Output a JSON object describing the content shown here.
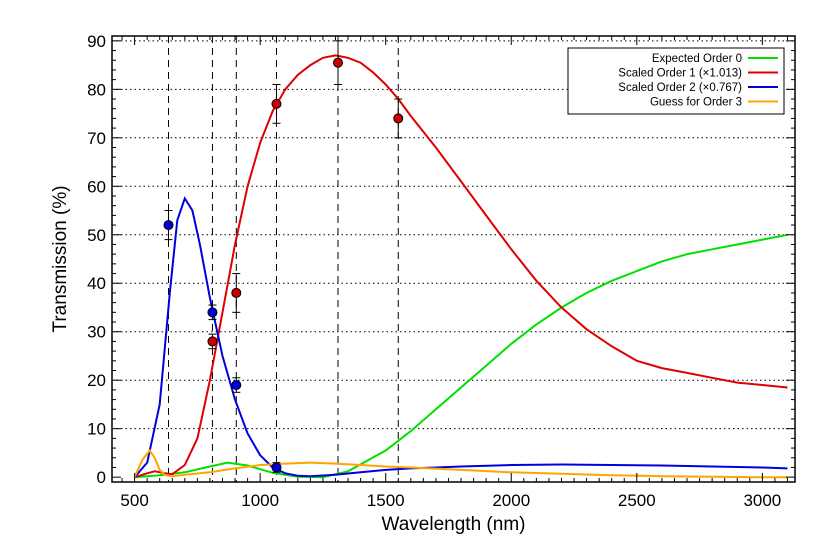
{
  "chart_data": {
    "type": "line",
    "title": "",
    "xlabel": "Wavelength (nm)",
    "ylabel": "Transmission (%)",
    "xlim": [
      410,
      3130
    ],
    "ylim": [
      -1,
      91
    ],
    "x_ticks": [
      500,
      1000,
      1500,
      2000,
      2500,
      3000
    ],
    "y_ticks": [
      0,
      10,
      20,
      30,
      40,
      50,
      60,
      70,
      80,
      90
    ],
    "grid": {
      "horizontal": "dotted",
      "vertical_dashed_at": [
        635,
        810,
        905,
        1065,
        1310,
        1550
      ]
    },
    "legend_position": "top-right",
    "series": [
      {
        "name": "Expected Order 0",
        "color": "#00e000",
        "x": [
          500,
          600,
          700,
          800,
          870,
          950,
          1050,
          1150,
          1250,
          1350,
          1500,
          1600,
          1700,
          1800,
          1900,
          2000,
          2100,
          2200,
          2300,
          2400,
          2500,
          2600,
          2700,
          2800,
          2900,
          3000,
          3100
        ],
        "y": [
          0,
          0.4,
          1.0,
          2.2,
          3.0,
          2.4,
          0.9,
          0.1,
          0.0,
          1.2,
          5.5,
          9.5,
          14.0,
          18.5,
          23.0,
          27.5,
          31.5,
          35.0,
          38.0,
          40.5,
          42.5,
          44.5,
          46.0,
          47.0,
          48.0,
          49.0,
          50.0
        ]
      },
      {
        "name": "Scaled Order 1 (×1.013)",
        "color": "#e00000",
        "x": [
          500,
          550,
          580,
          620,
          650,
          700,
          750,
          800,
          850,
          900,
          950,
          1000,
          1050,
          1100,
          1150,
          1200,
          1250,
          1300,
          1350,
          1400,
          1450,
          1500,
          1550,
          1600,
          1700,
          1800,
          1900,
          2000,
          2100,
          2200,
          2300,
          2400,
          2500,
          2600,
          2700,
          2800,
          2900,
          3000,
          3100
        ],
        "y": [
          0,
          0.8,
          1.2,
          0.8,
          0.6,
          2.5,
          8.0,
          20.0,
          34.0,
          48.0,
          60.0,
          69.0,
          75.5,
          80.0,
          83.0,
          85.0,
          86.5,
          87.0,
          86.5,
          85.5,
          83.5,
          81.0,
          78.0,
          74.5,
          68.0,
          61.0,
          54.0,
          47.0,
          40.5,
          35.0,
          30.5,
          27.0,
          24.0,
          22.5,
          21.5,
          20.5,
          19.5,
          19.0,
          18.5
        ]
      },
      {
        "name": "Scaled Order 2 (×0.767)",
        "color": "#0000dd",
        "x": [
          500,
          550,
          600,
          640,
          670,
          700,
          730,
          760,
          800,
          850,
          900,
          950,
          1000,
          1050,
          1100,
          1150,
          1200,
          1300,
          1400,
          1500,
          1600,
          1700,
          1800,
          2000,
          2200,
          2400,
          2600,
          2800,
          3000,
          3100
        ],
        "y": [
          0,
          3.0,
          15.0,
          38.0,
          53.0,
          57.5,
          55.0,
          48.0,
          37.0,
          25.0,
          16.0,
          9.0,
          4.5,
          2.0,
          0.8,
          0.3,
          0.2,
          0.5,
          1.0,
          1.5,
          1.8,
          2.0,
          2.2,
          2.5,
          2.6,
          2.5,
          2.4,
          2.2,
          2.0,
          1.8
        ]
      },
      {
        "name": "Guess for Order 3",
        "color": "#ffa500",
        "x": [
          500,
          530,
          560,
          580,
          600,
          620,
          650,
          700,
          800,
          900,
          1000,
          1100,
          1200,
          1300,
          1400,
          1500,
          1600,
          1800,
          2000,
          2200,
          2400,
          2600,
          2800,
          3000,
          3100
        ],
        "y": [
          0,
          3.5,
          5.5,
          4.0,
          1.5,
          0.5,
          0.2,
          0.5,
          1.0,
          1.8,
          2.5,
          2.8,
          3.0,
          2.8,
          2.5,
          2.2,
          2.0,
          1.5,
          1.0,
          0.7,
          0.4,
          0.2,
          0.1,
          0.0,
          0.0
        ]
      }
    ],
    "points": [
      {
        "x": 635,
        "y": 52.0,
        "err": 3.0,
        "color": "#0000dd"
      },
      {
        "x": 810,
        "y": 34.0,
        "err": 1.5,
        "color": "#0000dd"
      },
      {
        "x": 810,
        "y": 28.0,
        "err": 1.5,
        "color": "#cc0000"
      },
      {
        "x": 905,
        "y": 38.0,
        "err": 4.0,
        "color": "#cc0000"
      },
      {
        "x": 905,
        "y": 19.0,
        "err": 1.5,
        "color": "#0000dd"
      },
      {
        "x": 1065,
        "y": 77.0,
        "err": 4.0,
        "color": "#cc0000"
      },
      {
        "x": 1065,
        "y": 2.0,
        "err": 1.0,
        "color": "#0000dd"
      },
      {
        "x": 1310,
        "y": 85.5,
        "err": 4.5,
        "color": "#cc0000"
      },
      {
        "x": 1550,
        "y": 74.0,
        "err": 4.0,
        "color": "#cc0000"
      }
    ]
  }
}
